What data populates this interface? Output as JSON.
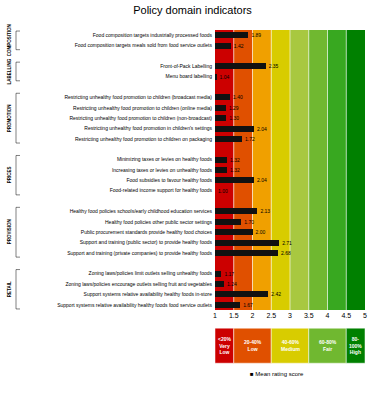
{
  "chart_data": {
    "type": "bar",
    "orientation": "horizontal",
    "title": "Policy domain indicators",
    "xlabel": "■ Mean rating score",
    "categories": [
      "Food composition targets industrially processed foods",
      "Food composition targets meals sold from food service outlets",
      null,
      "Front-of-Pack Labelling",
      "Menu board labelling",
      null,
      "Restricting unhealthy food promotion to children (broadcast media)",
      "Restricting unhealthy food promotion to children (online media)",
      "Restricting unhealthy food promotion to children (non-broadcast)",
      "Restricting unhealthy food promotion in children's settings",
      "Restricting unhealthy food promotion to children on packaging",
      null,
      "Minimizing taxes or levies on healthy foods",
      "Increasing taxes or levies on unhealthy foods",
      "Food subsidies to favour healthy foods",
      "Food-related income support for healthy foods",
      null,
      "Healthy food policies schools/early childhood education services",
      "Healthy food policies other public sector settings",
      "Public procurement standards provide healthy food choices",
      "Support and training (public sector) to provide healthy foods",
      "Support and training (private companies) to provide healthy foods",
      null,
      "Zoning laws/policies limit outlets selling unhealthy foods",
      "Zoning laws/policies encourage outlets selling fruit and vegetables",
      "Support systems relative availability healthy foods in-store",
      "Support systems relative availability healthy foods food service outlets"
    ],
    "values": [
      1.89,
      1.42,
      null,
      2.35,
      1.04,
      null,
      1.4,
      1.29,
      1.3,
      2.04,
      1.72,
      null,
      1.32,
      1.32,
      2.04,
      1,
      null,
      2.13,
      1.7,
      2,
      2.71,
      2.68,
      null,
      1.17,
      1.24,
      2.42,
      1.67
    ],
    "value_labels": [
      "1.89",
      "1.42",
      null,
      "2.35",
      "1.04",
      null,
      "1.40",
      "1.29",
      "1.30",
      "2.04",
      "1.72",
      null,
      "1.32",
      "1.32",
      "2.04",
      "1.00",
      null,
      "2.13",
      "1.70",
      "2.00",
      "2.71",
      "2.68",
      null,
      "1.17",
      "1.24",
      "2.42",
      "1.67"
    ],
    "data_labels": true,
    "color": "#111111",
    "xlim": [
      1,
      5
    ],
    "xticks": [
      1,
      1.5,
      2,
      2.5,
      3,
      3.5,
      4,
      4.5,
      5
    ],
    "grid": false,
    "bands": [
      {
        "xmin": 1.0,
        "xmax": 1.5,
        "color": "#cc0000"
      },
      {
        "xmin": 1.5,
        "xmax": 2.0,
        "color": "#e05000"
      },
      {
        "xmin": 2.0,
        "xmax": 2.5,
        "color": "#f0a000"
      },
      {
        "xmin": 2.5,
        "xmax": 3.0,
        "color": "#d8cc00"
      },
      {
        "xmin": 3.0,
        "xmax": 3.5,
        "color": "#a8c840"
      },
      {
        "xmin": 3.5,
        "xmax": 4.0,
        "color": "#70b830"
      },
      {
        "xmin": 4.0,
        "xmax": 4.5,
        "color": "#38a820"
      },
      {
        "xmin": 4.5,
        "xmax": 5.0,
        "color": "#008000"
      }
    ],
    "band_lines": {
      "color": "#ffffff",
      "positions": [
        1.5,
        2.0,
        2.5,
        3.0,
        3.5,
        4.0,
        4.5
      ]
    },
    "groups": [
      {
        "label": "COMPOSITION",
        "members": [
          0,
          1
        ]
      },
      {
        "label": "LABELLING",
        "members": [
          3,
          4
        ]
      },
      {
        "label": "PROMOTION",
        "members": [
          6,
          7,
          8,
          9,
          10
        ]
      },
      {
        "label": "PRICES",
        "members": [
          12,
          13,
          14,
          15
        ]
      },
      {
        "label": "PROVISION",
        "members": [
          17,
          18,
          19,
          20,
          21
        ]
      },
      {
        "label": "RETAIL",
        "members": [
          23,
          24,
          25,
          26
        ]
      }
    ],
    "legend_boxes": [
      {
        "xmin": 1.0,
        "xmax": 1.5,
        "color": "#cc0000",
        "label": "<20%\nVery\nLow"
      },
      {
        "xmin": 1.5,
        "xmax": 2.5,
        "color": "#e05000",
        "label": "20-40%\nLow"
      },
      {
        "xmin": 2.5,
        "xmax": 3.5,
        "color": "#d8cc00",
        "label": "40-60%\nMedium"
      },
      {
        "xmin": 3.5,
        "xmax": 4.5,
        "color": "#70b830",
        "label": "60-80%\nFair"
      },
      {
        "xmin": 4.5,
        "xmax": 5.0,
        "color": "#008000",
        "label": "80-\n100%\nHigh"
      }
    ]
  }
}
